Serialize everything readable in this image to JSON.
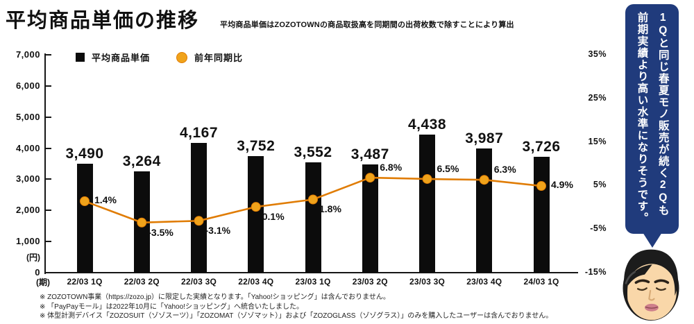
{
  "header": {
    "title": "平均商品単価の推移",
    "subtitle": "平均商品単価はZOZOTOWNの商品取扱高を同期間の出荷枚数で除すことにより算出"
  },
  "legend": {
    "bar_label": "平均商品単価",
    "line_label": "前年同期比"
  },
  "chart_data": {
    "type": "bar+line combo",
    "categories": [
      "22/03 1Q",
      "22/03 2Q",
      "22/03 3Q",
      "22/03 4Q",
      "23/03 1Q",
      "23/03 2Q",
      "23/03 3Q",
      "23/03 4Q",
      "24/03 1Q"
    ],
    "series": [
      {
        "name": "平均商品単価",
        "type": "bar",
        "values": [
          3490,
          3264,
          4167,
          3752,
          3552,
          3487,
          4438,
          3987,
          3726
        ],
        "labels": [
          "3,490",
          "3,264",
          "4,167",
          "3,752",
          "3,552",
          "3,487",
          "4,438",
          "3,987",
          "3,726"
        ],
        "color": "#0c0c0c",
        "axis": "left"
      },
      {
        "name": "前年同期比",
        "type": "line",
        "values": [
          1.4,
          -3.5,
          -3.1,
          0.1,
          1.8,
          6.8,
          6.5,
          6.3,
          4.9
        ],
        "labels": [
          "1.4%",
          "-3.5%",
          "-3.1%",
          "0.1%",
          "1.8%",
          "6.8%",
          "6.5%",
          "6.3%",
          "4.9%"
        ],
        "label_pos": [
          "right",
          "below-right",
          "below-right",
          "below-right",
          "below-right",
          "above-right",
          "above-right",
          "above-right",
          "right"
        ],
        "color": "#E07C04",
        "marker_color": "#F0A31B",
        "axis": "right"
      }
    ],
    "left_axis": {
      "unit": "(円)",
      "min": 0,
      "max": 7000,
      "ticks": [
        "7,000",
        "6,000",
        "5,000",
        "4,000",
        "3,000",
        "2,000",
        "1,000",
        "0"
      ]
    },
    "right_axis": {
      "min": -15,
      "max": 35,
      "ticks": [
        "35%",
        "25%",
        "15%",
        "5%",
        "-5%",
        "-15%"
      ]
    },
    "x_axis_unit": "(期)",
    "grid": false,
    "legend_position": "top-left"
  },
  "callout": {
    "line1": "1Qと同じ春夏モノ販売が続く2Qも",
    "line2": "前期実績より高い水準になりそうです。",
    "bg_color": "#203B7C"
  },
  "colors": {
    "bar": "#0c0c0c",
    "line": "#E07C04",
    "marker": "#F0A31B",
    "bubble": "#203B7C"
  },
  "footnotes": [
    "※ ZOZOTOWN事業（https://zozo.jp）に限定した実績となります。「Yahoo!ショッピング」は含んでおりません。",
    "※ 「PayPayモール」は2022年10月に「Yahoo!ショッピング」へ統合いたしました。",
    "※ 体型計測デバイス「ZOZOSUIT（ゾゾスーツ）」「ZOZOMAT（ゾゾマット）」および「ZOZOGLASS（ゾゾグラス）」のみを購入したユーザーは含んでおりません。"
  ]
}
